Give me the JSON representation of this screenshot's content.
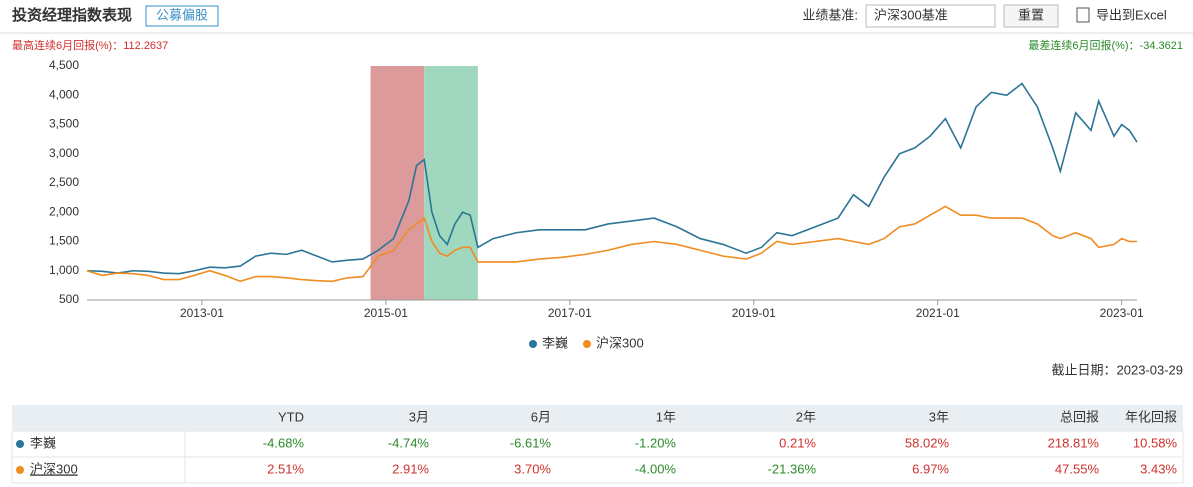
{
  "header": {
    "title": "投资经理指数表现",
    "tag": "公募偏股",
    "benchmark_label": "业绩基准:",
    "benchmark_value": "沪深300基准",
    "reset": "重置",
    "export": "导出到Excel"
  },
  "chart_data": {
    "type": "line",
    "annotation_left": "最高连续6月回报(%)：112.2637",
    "annotation_right": "最差连续6月回报(%)：-34.3621",
    "highlights": [
      {
        "start": "2014-11",
        "end": "2015-06",
        "color": "#dc9a9a"
      },
      {
        "start": "2015-06",
        "end": "2016-01",
        "color": "#9fd8bf"
      }
    ],
    "x": [
      "2011-10",
      "2011-12",
      "2012-02",
      "2012-04",
      "2012-06",
      "2012-08",
      "2012-10",
      "2012-12",
      "2013-02",
      "2013-04",
      "2013-06",
      "2013-08",
      "2013-10",
      "2013-12",
      "2014-02",
      "2014-04",
      "2014-06",
      "2014-08",
      "2014-10",
      "2014-12",
      "2015-02",
      "2015-04",
      "2015-05",
      "2015-06",
      "2015-07",
      "2015-08",
      "2015-09",
      "2015-10",
      "2015-11",
      "2015-12",
      "2016-01",
      "2016-03",
      "2016-06",
      "2016-09",
      "2016-12",
      "2017-03",
      "2017-06",
      "2017-09",
      "2017-12",
      "2018-03",
      "2018-06",
      "2018-09",
      "2018-12",
      "2019-02",
      "2019-04",
      "2019-06",
      "2019-09",
      "2019-12",
      "2020-02",
      "2020-04",
      "2020-06",
      "2020-08",
      "2020-10",
      "2020-12",
      "2021-02",
      "2021-04",
      "2021-06",
      "2021-08",
      "2021-10",
      "2021-12",
      "2022-02",
      "2022-04",
      "2022-05",
      "2022-07",
      "2022-09",
      "2022-10",
      "2022-12",
      "2023-01",
      "2023-02",
      "2023-03"
    ],
    "series": [
      {
        "name": "李巍",
        "color": "#2b7596",
        "values": [
          1000,
          990,
          960,
          1000,
          990,
          960,
          950,
          1000,
          1060,
          1050,
          1080,
          1250,
          1300,
          1280,
          1350,
          1250,
          1150,
          1180,
          1200,
          1350,
          1550,
          2200,
          2800,
          2900,
          2000,
          1600,
          1450,
          1800,
          2000,
          1950,
          1400,
          1550,
          1650,
          1700,
          1700,
          1700,
          1800,
          1850,
          1900,
          1750,
          1550,
          1450,
          1300,
          1400,
          1650,
          1600,
          1750,
          1900,
          2300,
          2100,
          2600,
          3000,
          3100,
          3300,
          3600,
          3100,
          3800,
          4050,
          4000,
          4200,
          3800,
          3100,
          2700,
          3700,
          3400,
          3900,
          3300,
          3500,
          3400,
          3200
        ]
      },
      {
        "name": "沪深300",
        "color": "#f08c21",
        "values": [
          1000,
          920,
          960,
          950,
          920,
          850,
          850,
          920,
          1000,
          920,
          820,
          900,
          900,
          880,
          850,
          830,
          820,
          880,
          900,
          1250,
          1350,
          1700,
          1800,
          1900,
          1500,
          1300,
          1250,
          1350,
          1400,
          1400,
          1150,
          1150,
          1150,
          1200,
          1230,
          1280,
          1350,
          1450,
          1500,
          1450,
          1350,
          1250,
          1200,
          1300,
          1500,
          1450,
          1500,
          1550,
          1500,
          1450,
          1550,
          1750,
          1800,
          1950,
          2100,
          1950,
          1950,
          1900,
          1900,
          1900,
          1800,
          1600,
          1550,
          1650,
          1550,
          1400,
          1450,
          1550,
          1500,
          1500
        ]
      }
    ],
    "xlim": [
      "2011-10",
      "2023-03"
    ],
    "xticks": [
      "2013-01",
      "2015-01",
      "2017-01",
      "2019-01",
      "2021-01",
      "2023-01"
    ],
    "ylim": [
      500,
      4500
    ],
    "yticks": [
      {
        "value": 500,
        "label": "500"
      },
      {
        "value": 1000,
        "label": "1,000"
      },
      {
        "value": 1500,
        "label": "1,500"
      },
      {
        "value": 2000,
        "label": "2,000"
      },
      {
        "value": 2500,
        "label": "2,500"
      },
      {
        "value": 3000,
        "label": "3,000"
      },
      {
        "value": 3500,
        "label": "3,500"
      },
      {
        "value": 4000,
        "label": "4,000"
      },
      {
        "value": 4500,
        "label": "4,500"
      }
    ],
    "grid": false
  },
  "as_of": "截止日期：2023-03-29",
  "table": {
    "columns": [
      "YTD",
      "3月",
      "6月",
      "1年",
      "2年",
      "3年",
      "总回报",
      "年化回报"
    ],
    "rows": [
      {
        "name": "李巍",
        "color": "#2b7596",
        "cells": [
          "-4.68%",
          "-4.74%",
          "-6.61%",
          "-1.20%",
          "0.21%",
          "58.02%",
          "218.81%",
          "10.58%"
        ]
      },
      {
        "name": "沪深300",
        "color": "#f08c21",
        "cells": [
          "2.51%",
          "2.91%",
          "3.70%",
          "-4.00%",
          "-21.36%",
          "6.97%",
          "47.55%",
          "3.43%"
        ]
      }
    ]
  }
}
